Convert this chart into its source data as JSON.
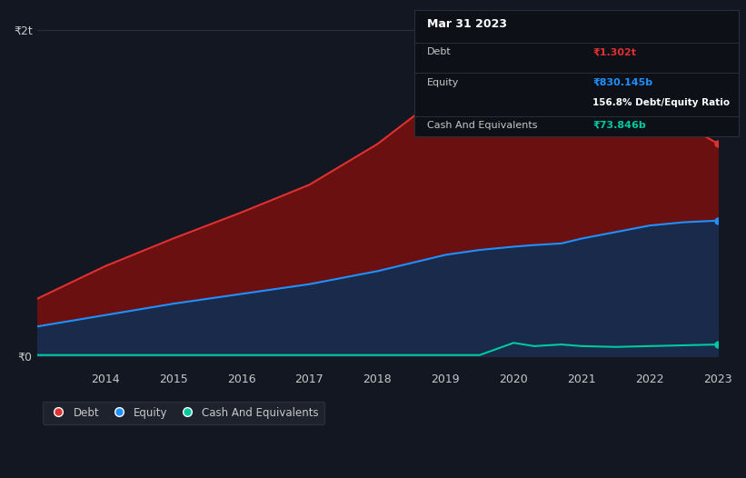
{
  "background_color": "#131722",
  "plot_bg_color": "#131722",
  "tooltip": {
    "date": "Mar 31 2023",
    "debt_label": "Debt",
    "debt_value": "₹1.302t",
    "equity_label": "Equity",
    "equity_value": "₹830.145b",
    "ratio_value": "156.8% Debt/Equity Ratio",
    "cash_label": "Cash And Equivalents",
    "cash_value": "₹73.846b"
  },
  "years": [
    2013,
    2014,
    2015,
    2016,
    2017,
    2018,
    2019,
    2019.5,
    2020,
    2020.3,
    2020.7,
    2021,
    2021.5,
    2022,
    2022.5,
    2023
  ],
  "debt": [
    0.35,
    0.55,
    0.72,
    0.88,
    1.05,
    1.3,
    1.62,
    1.7,
    1.75,
    1.65,
    1.7,
    1.55,
    1.5,
    1.45,
    1.42,
    1.302
  ],
  "equity": [
    0.18,
    0.25,
    0.32,
    0.38,
    0.44,
    0.52,
    0.62,
    0.65,
    0.67,
    0.68,
    0.69,
    0.72,
    0.76,
    0.8,
    0.82,
    0.83
  ],
  "cash": [
    0.005,
    0.005,
    0.005,
    0.005,
    0.005,
    0.005,
    0.005,
    0.005,
    0.08,
    0.06,
    0.07,
    0.06,
    0.055,
    0.06,
    0.065,
    0.07
  ],
  "debt_color": "#e03030",
  "equity_color": "#1e90ff",
  "cash_color": "#00c8a0",
  "debt_fill": "#6b1010",
  "equity_fill": "#1a2a4a",
  "ylim_max": 2.1,
  "ylim_min": -0.08,
  "yticks": [
    0,
    2
  ],
  "ytick_labels": [
    "₹0",
    "₹2t"
  ],
  "xticks": [
    2014,
    2015,
    2016,
    2017,
    2018,
    2019,
    2020,
    2021,
    2022,
    2023
  ],
  "grid_color": "#2a2e39",
  "text_color": "#c8c8c8",
  "legend_bg": "#1e222d",
  "legend_border": "#2a2e39",
  "tooltip_bg": "#0d1017",
  "tooltip_border": "#2a2e39"
}
